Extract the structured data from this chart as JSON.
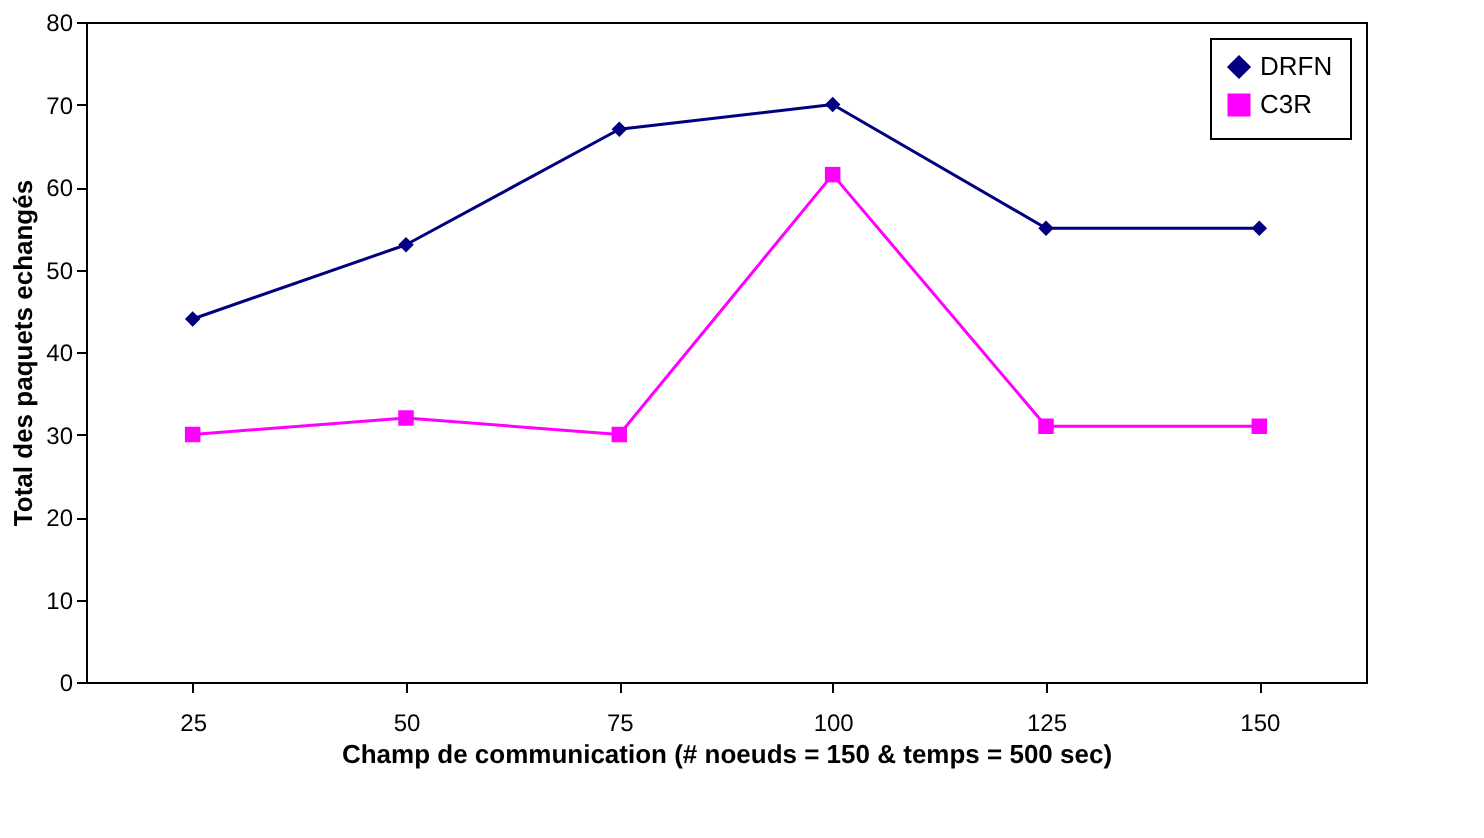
{
  "chart_data": {
    "type": "line",
    "xlabel": "Champ de communication (# noeuds = 150 & temps = 500 sec)",
    "ylabel": "Total des paquets echangés",
    "categories": [
      "25",
      "50",
      "75",
      "100",
      "125",
      "150"
    ],
    "series": [
      {
        "name": "DRFN",
        "color": "#000080",
        "marker": "diamond",
        "values": [
          44,
          53,
          67,
          70,
          55,
          55
        ]
      },
      {
        "name": "C3R",
        "color": "#ff00ff",
        "marker": "square",
        "values": [
          30,
          32,
          30,
          61.5,
          31,
          31
        ]
      }
    ],
    "ylim": [
      0,
      80
    ],
    "yticks": [
      0,
      10,
      20,
      30,
      40,
      50,
      60,
      70,
      80
    ],
    "grid": false,
    "legend": "top right"
  }
}
